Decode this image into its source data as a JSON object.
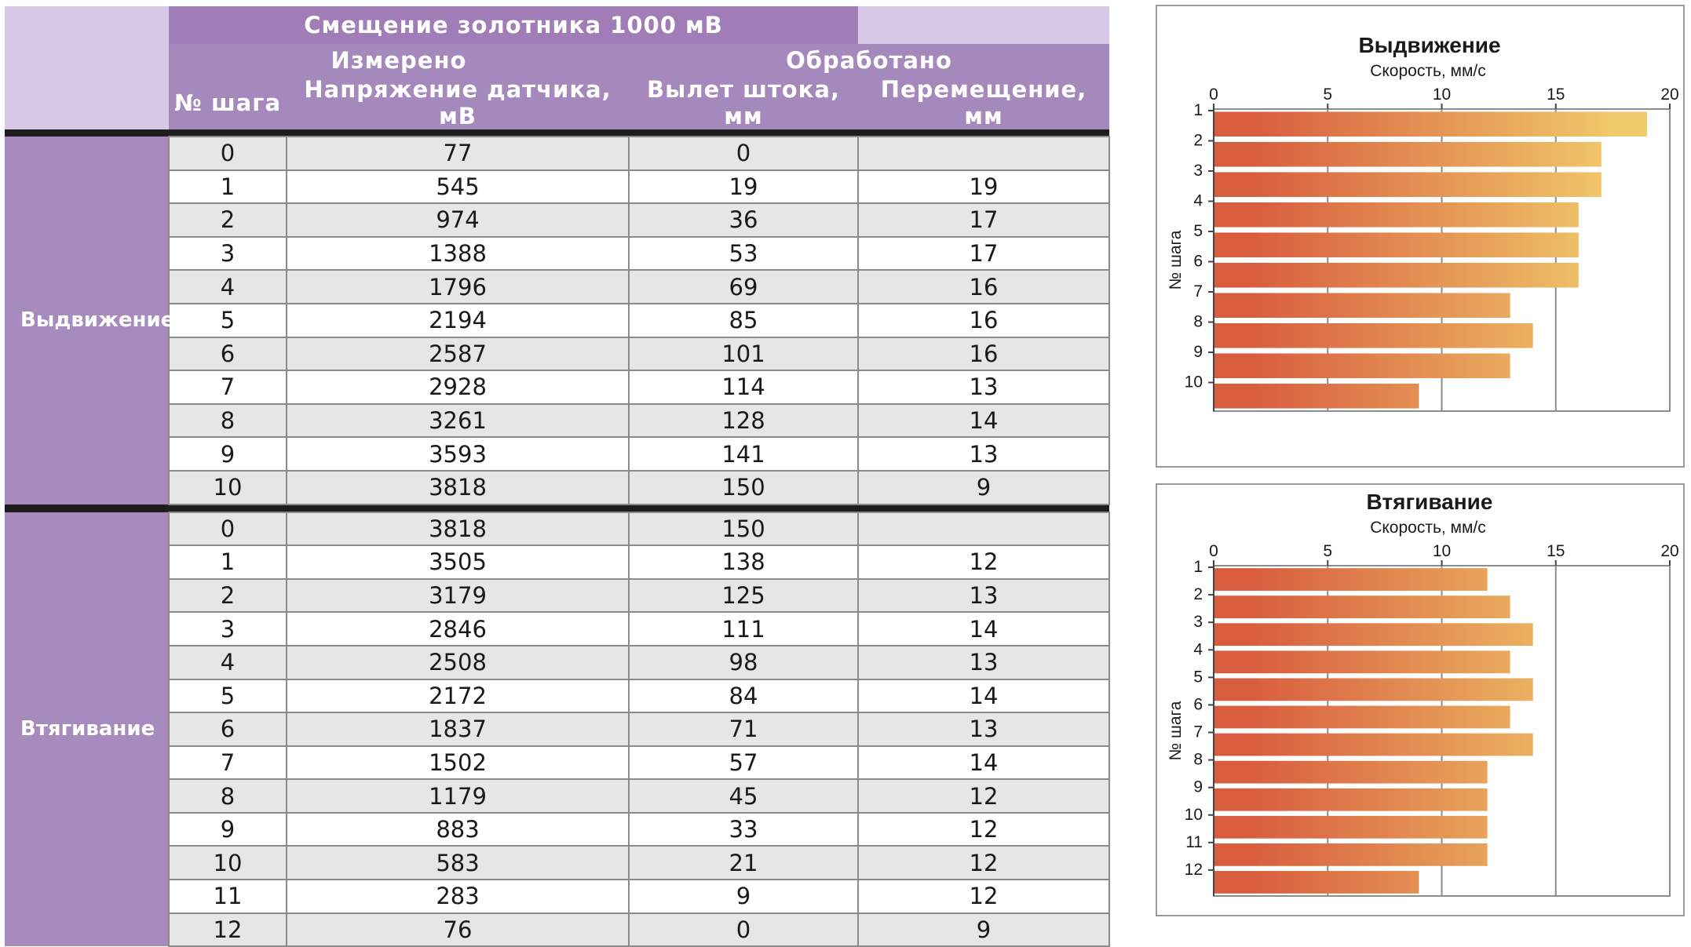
{
  "table": {
    "header": {
      "spool": "Смещение золотника 1000 мВ",
      "measured": "Измерено",
      "processed": "Обработано",
      "col_step": "№ шага",
      "col_voltage": "Напряжение датчика, мВ",
      "col_stroke": "Вылет штока, мм",
      "col_move": "Перемещение, мм"
    },
    "groups": [
      {
        "label": "Выдвижение",
        "rows": [
          [
            "0",
            "77",
            "0",
            ""
          ],
          [
            "1",
            "545",
            "19",
            "19"
          ],
          [
            "2",
            "974",
            "36",
            "17"
          ],
          [
            "3",
            "1388",
            "53",
            "17"
          ],
          [
            "4",
            "1796",
            "69",
            "16"
          ],
          [
            "5",
            "2194",
            "85",
            "16"
          ],
          [
            "6",
            "2587",
            "101",
            "16"
          ],
          [
            "7",
            "2928",
            "114",
            "13"
          ],
          [
            "8",
            "3261",
            "128",
            "14"
          ],
          [
            "9",
            "3593",
            "141",
            "13"
          ],
          [
            "10",
            "3818",
            "150",
            "9"
          ]
        ]
      },
      {
        "label": "Втягивание",
        "rows": [
          [
            "0",
            "3818",
            "150",
            ""
          ],
          [
            "1",
            "3505",
            "138",
            "12"
          ],
          [
            "2",
            "3179",
            "125",
            "13"
          ],
          [
            "3",
            "2846",
            "111",
            "14"
          ],
          [
            "4",
            "2508",
            "98",
            "13"
          ],
          [
            "5",
            "2172",
            "84",
            "14"
          ],
          [
            "6",
            "1837",
            "71",
            "13"
          ],
          [
            "7",
            "1502",
            "57",
            "14"
          ],
          [
            "8",
            "1179",
            "45",
            "12"
          ],
          [
            "9",
            "883",
            "33",
            "12"
          ],
          [
            "10",
            "583",
            "21",
            "12"
          ],
          [
            "11",
            "283",
            "9",
            "12"
          ],
          [
            "12",
            "76",
            "0",
            "9"
          ]
        ]
      }
    ]
  },
  "chart_data": [
    {
      "type": "bar",
      "orientation": "horizontal",
      "title": "Выдвижение",
      "xlabel": "Скорость, мм/с",
      "ylabel": "№ шага",
      "xlim": [
        0,
        20
      ],
      "xticks": [
        0,
        5,
        10,
        15,
        20
      ],
      "categories": [
        "1",
        "2",
        "3",
        "4",
        "5",
        "6",
        "7",
        "8",
        "9",
        "10"
      ],
      "values": [
        19,
        17,
        17,
        16,
        16,
        16,
        13,
        14,
        13,
        9
      ],
      "grid": true,
      "color_start": "#d85c3e",
      "color_end": "#f0c96a"
    },
    {
      "type": "bar",
      "orientation": "horizontal",
      "title": "Втягивание",
      "xlabel": "Скорость, мм/с",
      "ylabel": "№ шага",
      "xlim": [
        0,
        20
      ],
      "xticks": [
        0,
        5,
        10,
        15,
        20
      ],
      "categories": [
        "1",
        "2",
        "3",
        "4",
        "5",
        "6",
        "7",
        "8",
        "9",
        "10",
        "11",
        "12"
      ],
      "values": [
        12,
        13,
        14,
        13,
        14,
        13,
        14,
        12,
        12,
        12,
        12,
        9
      ],
      "grid": true,
      "color_start": "#d85c3e",
      "color_end": "#f0c96a"
    }
  ]
}
